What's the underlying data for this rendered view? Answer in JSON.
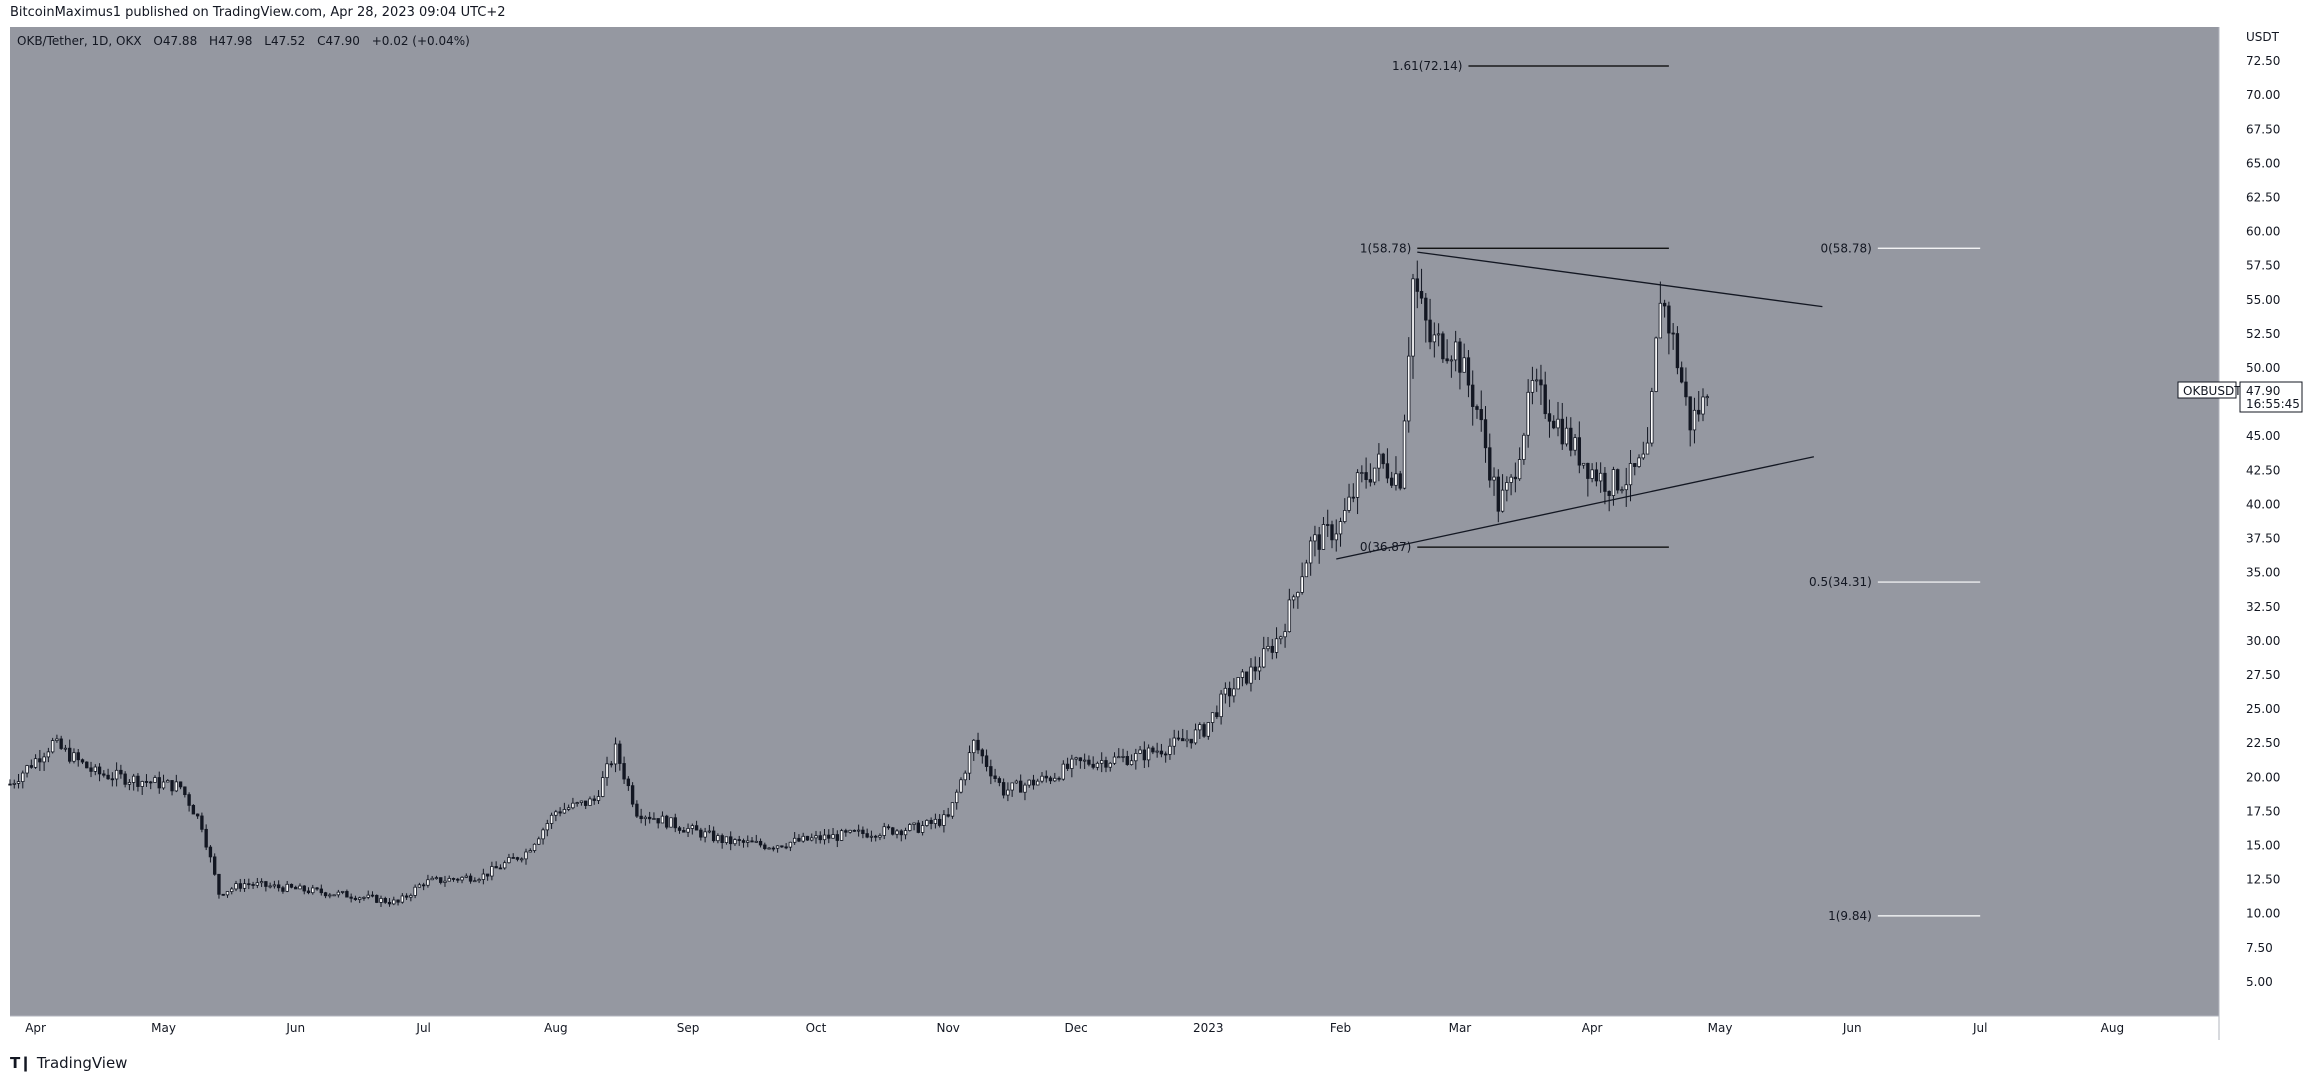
{
  "header": {
    "published": "BitcoinMaximus1 published on TradingView.com, Apr 28, 2023 09:04 UTC+2"
  },
  "legend": {
    "symbol": "OKB/Tether, 1D, OKX",
    "o_label": "O",
    "o_value": "47.88",
    "h_label": "H",
    "h_value": "47.98",
    "l_label": "L",
    "l_value": "47.52",
    "c_label": "C",
    "c_value": "47.90",
    "change": "+0.02 (+0.04%)"
  },
  "price_tag": {
    "symbol": "OKBUSDT",
    "price": "47.90",
    "countdown": "16:55:45"
  },
  "footer": {
    "brand": "TradingView",
    "logo_icon": "tradingview-logo-icon"
  },
  "colors": {
    "background": "#9598a1",
    "candle": "#131722",
    "fib_line": "#ffffff"
  },
  "chart_data": {
    "type": "candlestick",
    "title": "OKB/Tether, 1D, OKX",
    "currency_label": "USDT",
    "y_ticks": [
      "5.00",
      "7.50",
      "10.00",
      "12.50",
      "15.00",
      "17.50",
      "20.00",
      "22.50",
      "25.00",
      "27.50",
      "30.00",
      "32.50",
      "35.00",
      "37.50",
      "40.00",
      "42.50",
      "45.00",
      "47.50",
      "50.00",
      "52.50",
      "55.00",
      "57.50",
      "60.00",
      "62.50",
      "65.00",
      "67.50",
      "70.00",
      "72.50"
    ],
    "ylim": [
      2.5,
      75.0
    ],
    "x_range": [
      "2022-03-26",
      "2023-08-26"
    ],
    "x_ticks": [
      {
        "date": "2022-04-01",
        "label": "Apr"
      },
      {
        "date": "2022-05-01",
        "label": "May"
      },
      {
        "date": "2022-06-01",
        "label": "Jun"
      },
      {
        "date": "2022-07-01",
        "label": "Jul"
      },
      {
        "date": "2022-08-01",
        "label": "Aug"
      },
      {
        "date": "2022-09-01",
        "label": "Sep"
      },
      {
        "date": "2022-10-01",
        "label": "Oct"
      },
      {
        "date": "2022-11-01",
        "label": "Nov"
      },
      {
        "date": "2022-12-01",
        "label": "Dec"
      },
      {
        "date": "2023-01-01",
        "label": "2023"
      },
      {
        "date": "2023-02-01",
        "label": "Feb"
      },
      {
        "date": "2023-03-01",
        "label": "Mar"
      },
      {
        "date": "2023-04-01",
        "label": "Apr"
      },
      {
        "date": "2023-05-01",
        "label": "May"
      },
      {
        "date": "2023-06-01",
        "label": "Jun"
      },
      {
        "date": "2023-07-01",
        "label": "Jul"
      },
      {
        "date": "2023-08-01",
        "label": "Aug"
      }
    ],
    "price_anchors": [
      [
        "2022-03-26",
        19.5
      ],
      [
        "2022-04-05",
        22.5
      ],
      [
        "2022-04-15",
        20.3
      ],
      [
        "2022-04-25",
        19.8
      ],
      [
        "2022-05-05",
        19.3
      ],
      [
        "2022-05-10",
        16.5
      ],
      [
        "2022-05-14",
        11.5
      ],
      [
        "2022-05-20",
        12.2
      ],
      [
        "2022-06-01",
        11.8
      ],
      [
        "2022-06-15",
        11.3
      ],
      [
        "2022-06-25",
        10.8
      ],
      [
        "2022-07-01",
        12.3
      ],
      [
        "2022-07-15",
        12.8
      ],
      [
        "2022-07-25",
        14.5
      ],
      [
        "2022-08-01",
        17.5
      ],
      [
        "2022-08-10",
        18.3
      ],
      [
        "2022-08-15",
        22.0
      ],
      [
        "2022-08-20",
        17.5
      ],
      [
        "2022-08-31",
        16.3
      ],
      [
        "2022-09-10",
        15.3
      ],
      [
        "2022-09-20",
        15.0
      ],
      [
        "2022-10-01",
        15.5
      ],
      [
        "2022-10-15",
        16.0
      ],
      [
        "2022-10-25",
        16.3
      ],
      [
        "2022-11-01",
        17.0
      ],
      [
        "2022-11-07",
        22.5
      ],
      [
        "2022-11-14",
        19.0
      ],
      [
        "2022-11-25",
        20.0
      ],
      [
        "2022-12-01",
        21.0
      ],
      [
        "2022-12-15",
        21.5
      ],
      [
        "2022-12-25",
        22.5
      ],
      [
        "2022-12-31",
        23.5
      ],
      [
        "2023-01-05",
        26.0
      ],
      [
        "2023-01-12",
        28.0
      ],
      [
        "2023-01-18",
        30.5
      ],
      [
        "2023-01-25",
        37.0
      ],
      [
        "2023-02-01",
        38.5
      ],
      [
        "2023-02-05",
        41.5
      ],
      [
        "2023-02-10",
        43.0
      ],
      [
        "2023-02-15",
        42.0
      ],
      [
        "2023-02-18",
        56.5
      ],
      [
        "2023-02-22",
        52.0
      ],
      [
        "2023-02-28",
        51.5
      ],
      [
        "2023-03-05",
        47.0
      ],
      [
        "2023-03-10",
        40.0
      ],
      [
        "2023-03-13",
        41.5
      ],
      [
        "2023-03-18",
        48.5
      ],
      [
        "2023-03-22",
        47.0
      ],
      [
        "2023-03-28",
        44.0
      ],
      [
        "2023-04-01",
        42.5
      ],
      [
        "2023-04-05",
        41.5
      ],
      [
        "2023-04-10",
        42.0
      ],
      [
        "2023-04-14",
        43.5
      ],
      [
        "2023-04-17",
        55.5
      ],
      [
        "2023-04-20",
        52.0
      ],
      [
        "2023-04-24",
        46.0
      ],
      [
        "2023-04-28",
        47.9
      ]
    ],
    "triangle": {
      "upper_trendline": [
        [
          "2023-02-19",
          58.5
        ],
        [
          "2023-05-25",
          54.5
        ]
      ],
      "lower_trendline": [
        [
          "2023-01-31",
          36.0
        ],
        [
          "2023-05-23",
          43.5
        ]
      ]
    },
    "fib_levels": [
      {
        "label": "1.61(72.14)",
        "value": 72.14,
        "from": "2023-03-03",
        "to": "2023-04-19",
        "color": "#000000"
      },
      {
        "label": "1(58.78)",
        "value": 58.78,
        "from": "2023-02-19",
        "to": "2023-04-19",
        "color": "#000000"
      },
      {
        "label": "0(36.87)",
        "value": 36.87,
        "from": "2023-02-19",
        "to": "2023-04-19",
        "color": "#000000"
      },
      {
        "label": "0(58.78)",
        "value": 58.78,
        "from": "2023-06-07",
        "to": "2023-07-01",
        "color": "#ffffff"
      },
      {
        "label": "0.5(34.31)",
        "value": 34.31,
        "from": "2023-06-07",
        "to": "2023-07-01",
        "color": "#ffffff"
      },
      {
        "label": "1(9.84)",
        "value": 9.84,
        "from": "2023-06-07",
        "to": "2023-07-01",
        "color": "#ffffff"
      }
    ]
  }
}
